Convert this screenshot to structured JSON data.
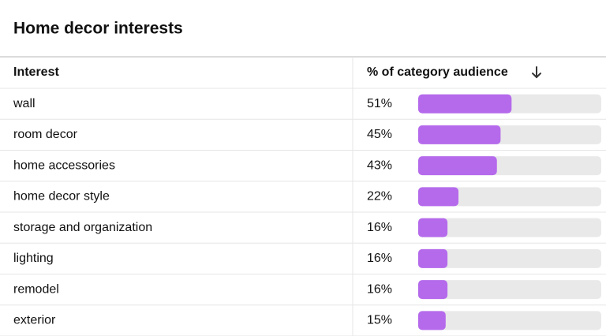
{
  "title": "Home decor interests",
  "table": {
    "columns": [
      "Interest",
      "% of category audience"
    ],
    "interests": [
      "wall",
      "room decor",
      "home accessories",
      "home decor style",
      "storage and organization",
      "lighting",
      "remodel",
      "exterior"
    ],
    "values": [
      51,
      45,
      43,
      22,
      16,
      16,
      16,
      15
    ],
    "value_labels": [
      "51%",
      "45%",
      "43%",
      "22%",
      "16%",
      "16%",
      "16%",
      "15%"
    ],
    "xlim": [
      0,
      100
    ],
    "bar_color": "#b56aec",
    "track_color": "#e9e9e9"
  }
}
